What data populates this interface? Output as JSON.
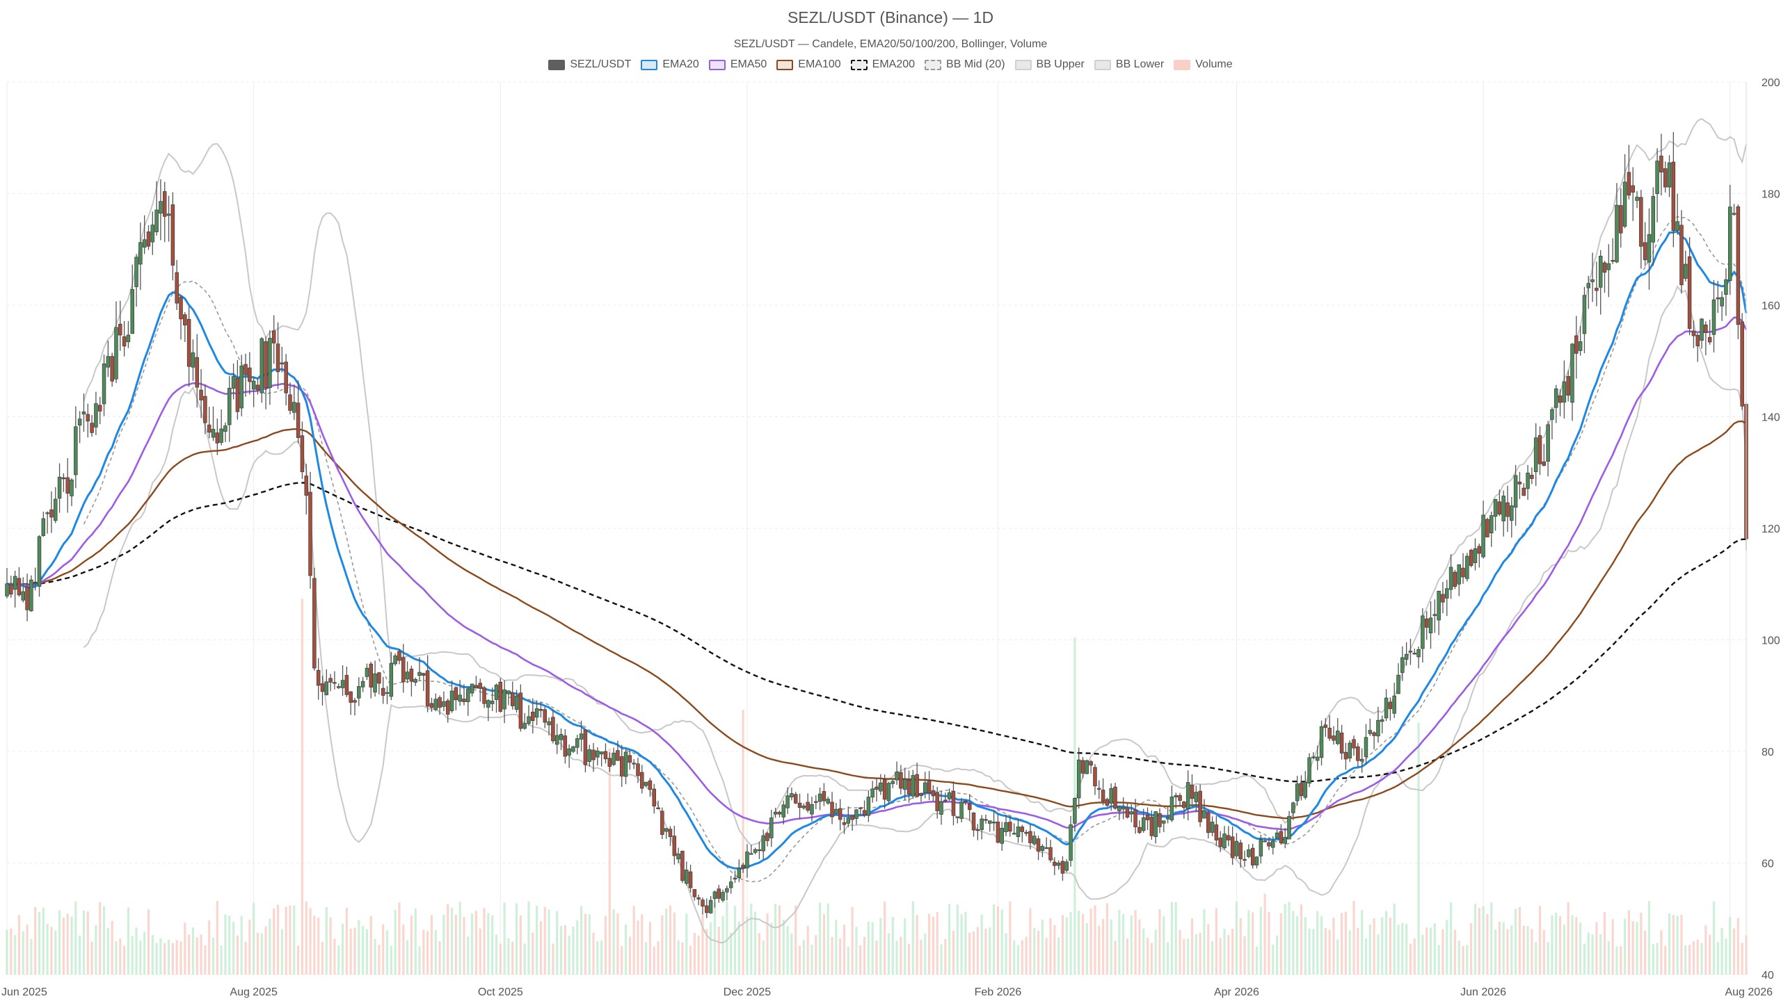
{
  "title": "SEZL/USDT (Binance) — 1D",
  "subtitle": "SEZL/USDT — Candele, EMA20/50/100/200, Bollinger, Volume",
  "legend": [
    {
      "label": "SEZL/USDT",
      "fill": "#5f5f5f",
      "border": "#5f5f5f",
      "dash": false
    },
    {
      "label": "EMA20",
      "fill": "#dbe9f7",
      "border": "#1e88e5",
      "dash": false
    },
    {
      "label": "EMA50",
      "fill": "#ece4f7",
      "border": "#9d5ce6",
      "dash": false
    },
    {
      "label": "EMA100",
      "fill": "#f0e6dc",
      "border": "#8c4a1c",
      "dash": false
    },
    {
      "label": "EMA200",
      "fill": "#eeeeee",
      "border": "#111111",
      "dash": true
    },
    {
      "label": "BB Mid (20)",
      "fill": "#eeeeee",
      "border": "#999999",
      "dash": true
    },
    {
      "label": "BB Upper",
      "fill": "#e8e8e8",
      "border": "#d0d0d0",
      "dash": false
    },
    {
      "label": "BB Lower",
      "fill": "#e8e8e8",
      "border": "#d0d0d0",
      "dash": false
    },
    {
      "label": "Volume",
      "fill": "#f9cfc7",
      "border": "#f9cfc7",
      "dash": false
    }
  ],
  "colors": {
    "up": "#4f8a5b",
    "down": "#a4503f",
    "ema20": "#1e88e5",
    "ema50": "#9d5ce6",
    "ema100": "#8c4a1c",
    "ema200": "#111111",
    "bb_mid": "#999999",
    "bb_band": "#c8c8c8",
    "vol_up": "#c6ecd2",
    "vol_down": "#f9cfc7",
    "grid": "#ececec"
  },
  "chart_data": {
    "type": "candlestick",
    "interval": "1D",
    "x_range": [
      "2025-06-01",
      "2026-08-05"
    ],
    "y_range": [
      40,
      200
    ],
    "x_ticks": [
      {
        "label": "Jun 2025",
        "date": "2025-06-01"
      },
      {
        "label": "Aug 2025",
        "date": "2025-08-01"
      },
      {
        "label": "Oct 2025",
        "date": "2025-10-01"
      },
      {
        "label": "Dec 2025",
        "date": "2025-12-01"
      },
      {
        "label": "Feb 2026",
        "date": "2026-02-01"
      },
      {
        "label": "Apr 2026",
        "date": "2026-04-01"
      },
      {
        "label": "Jun 2026",
        "date": "2026-06-01"
      },
      {
        "label": "Aug 2026",
        "date": "2026-08-01"
      }
    ],
    "y_ticks": [
      40,
      60,
      80,
      100,
      120,
      140,
      160,
      180,
      200
    ],
    "grid": true,
    "legend_position": "top",
    "close_anchors": [
      [
        "2025-06-01",
        112
      ],
      [
        "2025-06-06",
        109
      ],
      [
        "2025-06-12",
        122
      ],
      [
        "2025-06-18",
        134
      ],
      [
        "2025-06-25",
        145
      ],
      [
        "2025-07-01",
        160
      ],
      [
        "2025-07-06",
        172
      ],
      [
        "2025-07-09",
        176
      ],
      [
        "2025-07-13",
        165
      ],
      [
        "2025-07-16",
        153
      ],
      [
        "2025-07-19",
        140
      ],
      [
        "2025-07-25",
        140
      ],
      [
        "2025-07-31",
        148
      ],
      [
        "2025-08-06",
        150
      ],
      [
        "2025-08-10",
        145
      ],
      [
        "2025-08-12",
        140
      ],
      [
        "2025-08-14",
        125
      ],
      [
        "2025-08-16",
        95
      ],
      [
        "2025-08-20",
        90
      ],
      [
        "2025-08-30",
        92
      ],
      [
        "2025-09-08",
        95
      ],
      [
        "2025-09-14",
        89
      ],
      [
        "2025-09-25",
        91
      ],
      [
        "2025-10-06",
        87
      ],
      [
        "2025-10-16",
        82
      ],
      [
        "2025-10-26",
        79
      ],
      [
        "2025-11-01",
        78
      ],
      [
        "2025-11-06",
        72
      ],
      [
        "2025-11-11",
        66
      ],
      [
        "2025-11-16",
        57
      ],
      [
        "2025-11-20",
        52
      ],
      [
        "2025-11-26",
        57
      ],
      [
        "2025-12-01",
        60
      ],
      [
        "2025-12-06",
        65
      ],
      [
        "2025-12-12",
        72
      ],
      [
        "2025-12-19",
        71
      ],
      [
        "2025-12-26",
        67
      ],
      [
        "2026-01-01",
        71
      ],
      [
        "2026-01-08",
        76
      ],
      [
        "2026-01-14",
        72
      ],
      [
        "2026-01-22",
        70
      ],
      [
        "2026-01-29",
        66
      ],
      [
        "2026-02-05",
        65
      ],
      [
        "2026-02-12",
        63
      ],
      [
        "2026-02-18",
        59
      ],
      [
        "2026-02-21",
        80
      ],
      [
        "2026-02-24",
        75
      ],
      [
        "2026-03-02",
        71
      ],
      [
        "2026-03-09",
        66
      ],
      [
        "2026-03-15",
        69
      ],
      [
        "2026-03-20",
        73
      ],
      [
        "2026-03-28",
        64
      ],
      [
        "2026-04-05",
        61
      ],
      [
        "2026-04-12",
        65
      ],
      [
        "2026-04-15",
        70
      ],
      [
        "2026-04-22",
        82
      ],
      [
        "2026-04-29",
        80
      ],
      [
        "2026-05-05",
        82
      ],
      [
        "2026-05-09",
        90
      ],
      [
        "2026-05-13",
        99
      ],
      [
        "2026-05-20",
        105
      ],
      [
        "2026-05-27",
        114
      ],
      [
        "2026-06-03",
        120
      ],
      [
        "2026-06-09",
        126
      ],
      [
        "2026-06-15",
        133
      ],
      [
        "2026-06-20",
        142
      ],
      [
        "2026-06-25",
        155
      ],
      [
        "2026-07-01",
        170
      ],
      [
        "2026-07-07",
        180
      ],
      [
        "2026-07-12",
        172
      ],
      [
        "2026-07-15",
        186
      ],
      [
        "2026-07-18",
        176
      ],
      [
        "2026-07-22",
        158
      ],
      [
        "2026-07-26",
        152
      ],
      [
        "2026-07-31",
        170
      ],
      [
        "2026-08-02",
        176
      ],
      [
        "2026-08-05",
        119
      ]
    ],
    "volume_spikes": [
      {
        "date": "2025-08-13",
        "value_range": "(0-1 of pane)",
        "level": 0.88
      },
      {
        "date": "2025-11-30",
        "level": 0.62
      },
      {
        "date": "2025-10-28",
        "level": 0.53
      },
      {
        "date": "2026-02-20",
        "level": 0.79
      },
      {
        "date": "2026-05-16",
        "level": 0.59
      },
      {
        "date": "2026-04-08",
        "level": 0.35
      }
    ]
  }
}
